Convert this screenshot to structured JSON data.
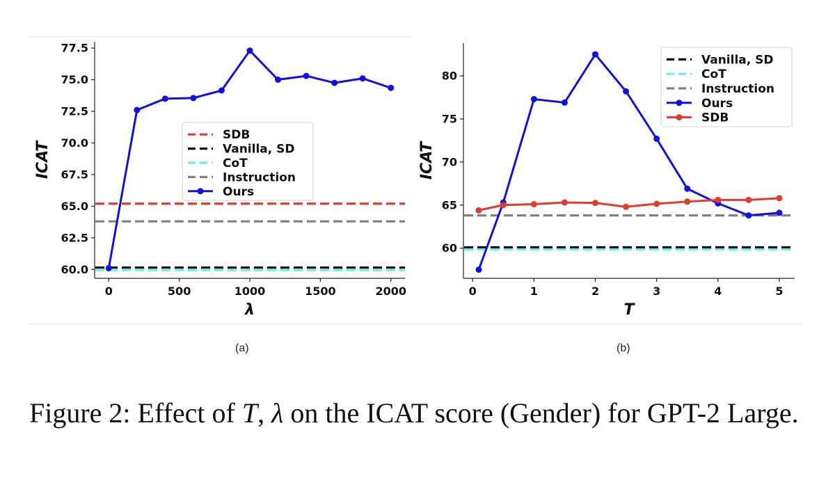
{
  "colors": {
    "ours": "#1010e6",
    "sdb": "#e23a2b",
    "vanilla": "#000000",
    "cot": "#5ff0f0",
    "instruction": "#808080"
  },
  "chart_data": [
    {
      "type": "line",
      "subfigure_label": "(a)",
      "xlabel": "λ",
      "ylabel": "ICAT",
      "xlim": [
        -100,
        2100
      ],
      "ylim": [
        59.3,
        78.0
      ],
      "xticks": [
        0,
        500,
        1000,
        1500,
        2000
      ],
      "xtick_labels": [
        "0",
        "500",
        "1000",
        "1500",
        "2000"
      ],
      "yticks": [
        60.0,
        62.5,
        65.0,
        67.5,
        70.0,
        72.5,
        75.0,
        77.5
      ],
      "ytick_labels": [
        "60.0",
        "62.5",
        "65.0",
        "67.5",
        "70.0",
        "72.5",
        "75.0",
        "77.5"
      ],
      "legend_position": "center",
      "legend": [
        "SDB",
        "Vanilla, SD",
        "CoT",
        "Instruction",
        "Ours"
      ],
      "series": [
        {
          "name": "Ours",
          "color_key": "ours",
          "style": "solid-marker",
          "x": [
            0,
            200,
            400,
            600,
            800,
            1000,
            1200,
            1400,
            1600,
            1800,
            2000
          ],
          "y": [
            60.1,
            72.6,
            73.5,
            73.55,
            74.15,
            77.3,
            75.0,
            75.3,
            74.75,
            75.1,
            74.35
          ]
        }
      ],
      "hlines": [
        {
          "name": "SDB",
          "color_key": "sdb",
          "y": 65.2
        },
        {
          "name": "Vanilla, SD",
          "color_key": "vanilla",
          "y": 60.15
        },
        {
          "name": "CoT",
          "color_key": "cot",
          "y": 59.95
        },
        {
          "name": "Instruction",
          "color_key": "instruction",
          "y": 63.8
        }
      ]
    },
    {
      "type": "line",
      "subfigure_label": "(b)",
      "xlabel": "T",
      "ylabel": "ICAT",
      "xlim": [
        -0.15,
        5.25
      ],
      "ylim": [
        56.5,
        83.8
      ],
      "xticks": [
        0,
        1,
        2,
        3,
        4,
        5
      ],
      "xtick_labels": [
        "0",
        "1",
        "2",
        "3",
        "4",
        "5"
      ],
      "yticks": [
        60,
        65,
        70,
        75,
        80
      ],
      "ytick_labels": [
        "60",
        "65",
        "70",
        "75",
        "80"
      ],
      "legend_position": "top-right",
      "legend": [
        "Vanilla, SD",
        "CoT",
        "Instruction",
        "Ours",
        "SDB"
      ],
      "series": [
        {
          "name": "Ours",
          "color_key": "ours",
          "style": "solid-marker",
          "x": [
            0.1,
            0.5,
            1.0,
            1.5,
            2.0,
            2.5,
            3.0,
            3.5,
            4.0,
            4.5,
            5.0
          ],
          "y": [
            57.5,
            65.3,
            77.3,
            76.9,
            82.5,
            78.2,
            72.7,
            66.9,
            65.2,
            63.8,
            64.1
          ]
        },
        {
          "name": "SDB",
          "color_key": "sdb",
          "style": "solid-marker",
          "x": [
            0.1,
            0.5,
            1.0,
            1.5,
            2.0,
            2.5,
            3.0,
            3.5,
            4.0,
            4.5,
            5.0
          ],
          "y": [
            64.4,
            65.0,
            65.1,
            65.3,
            65.25,
            64.8,
            65.15,
            65.4,
            65.6,
            65.6,
            65.8
          ]
        }
      ],
      "hlines": [
        {
          "name": "Vanilla, SD",
          "color_key": "vanilla",
          "y": 60.1
        },
        {
          "name": "CoT",
          "color_key": "cot",
          "y": 59.85
        },
        {
          "name": "Instruction",
          "color_key": "instruction",
          "y": 63.8
        }
      ]
    }
  ],
  "caption": {
    "prefix": "Figure 2: Effect of ",
    "var_t": "T",
    "sep": ", ",
    "var_lambda": "λ",
    "suffix": " on the ICAT score (Gender) for GPT-2 Large."
  }
}
